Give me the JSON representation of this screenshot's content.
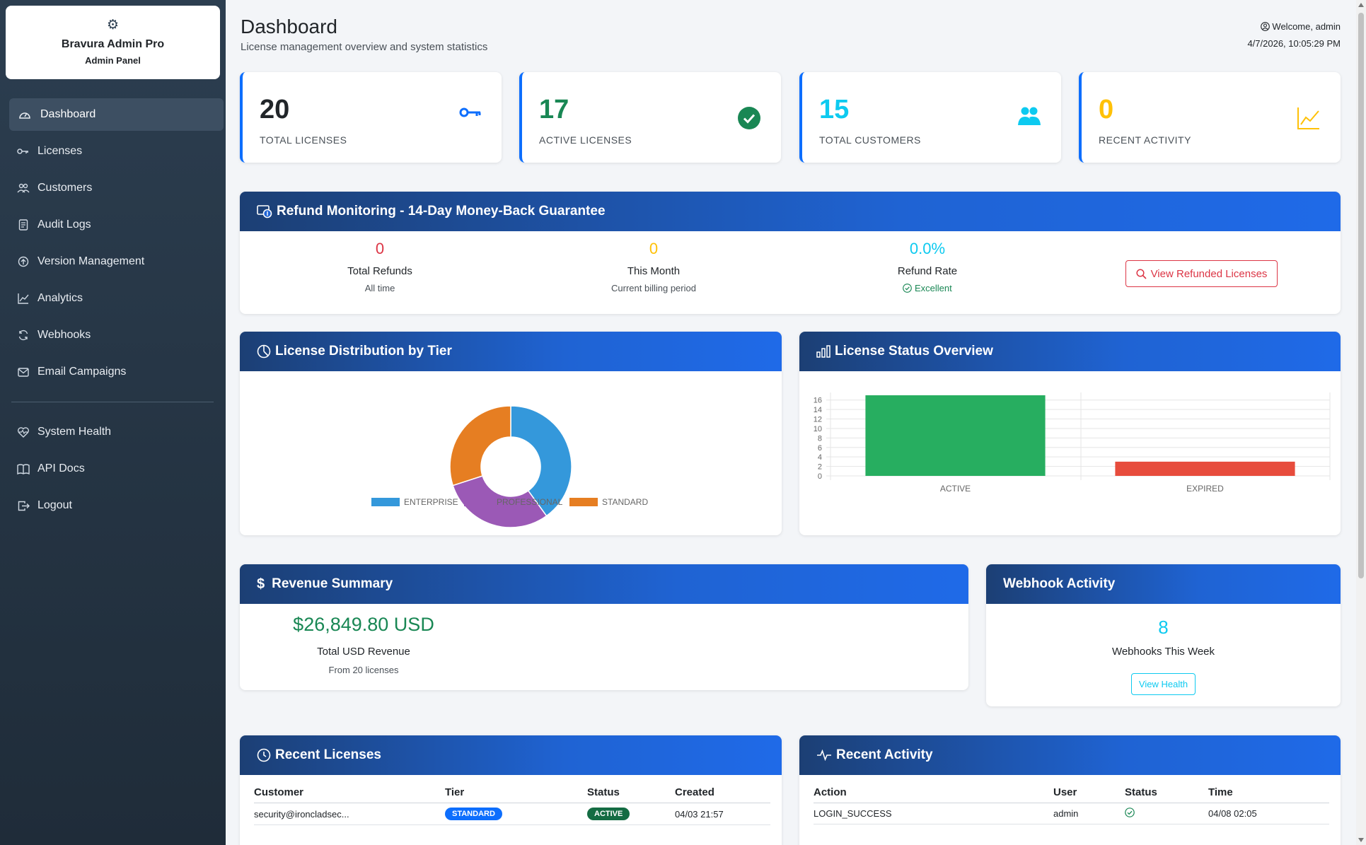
{
  "brand": {
    "name": "Bravura Admin Pro",
    "subtitle": "Admin Panel",
    "icon": "gear-icon"
  },
  "sidebar": {
    "items": [
      {
        "label": "Dashboard",
        "icon": "speedometer-icon",
        "active": true
      },
      {
        "label": "Licenses",
        "icon": "key-icon"
      },
      {
        "label": "Customers",
        "icon": "people-icon"
      },
      {
        "label": "Audit Logs",
        "icon": "journal-icon"
      },
      {
        "label": "Version Management",
        "icon": "upload-circle-icon"
      },
      {
        "label": "Analytics",
        "icon": "line-chart-icon"
      },
      {
        "label": "Webhooks",
        "icon": "refresh-icon"
      },
      {
        "label": "Email Campaigns",
        "icon": "envelope-icon"
      },
      {
        "label": "System Health",
        "icon": "heart-pulse-icon"
      },
      {
        "label": "API Docs",
        "icon": "book-icon"
      },
      {
        "label": "Logout",
        "icon": "logout-icon"
      }
    ]
  },
  "header": {
    "title": "Dashboard",
    "subtitle": "License management overview and system statistics",
    "welcome": "Welcome, admin",
    "datetime": "4/7/2026, 10:05:29 PM"
  },
  "stats": [
    {
      "value": "20",
      "label": "TOTAL LICENSES",
      "color": "#212529",
      "accent": "#0d6efd",
      "icon": "key-icon"
    },
    {
      "value": "17",
      "label": "ACTIVE LICENSES",
      "color": "#198754",
      "accent": "#0d6efd",
      "icon": "check-circle-icon"
    },
    {
      "value": "15",
      "label": "TOTAL CUSTOMERS",
      "color": "#0dcaf0",
      "accent": "#0d6efd",
      "icon": "people-icon"
    },
    {
      "value": "0",
      "label": "RECENT ACTIVITY",
      "color": "#ffc107",
      "accent": "#0d6efd",
      "icon": "graph-up-icon"
    }
  ],
  "refund": {
    "title": "Refund Monitoring - 14-Day Money-Back Guarantee",
    "total_value": "0",
    "total_label": "Total Refunds",
    "total_sub": "All time",
    "month_value": "0",
    "month_label": "This Month",
    "month_sub": "Current billing period",
    "rate_value": "0.0%",
    "rate_label": "Refund Rate",
    "rate_sub": "Excellent",
    "button": "View Refunded Licenses",
    "colors": {
      "total": "#dc3545",
      "month": "#ffc107",
      "rate": "#0dcaf0",
      "excellent": "#198754"
    }
  },
  "distribution": {
    "title": "License Distribution by Tier",
    "legend": [
      "ENTERPRISE",
      "PROFESSIONAL",
      "STANDARD"
    ]
  },
  "status_overview": {
    "title": "License Status Overview"
  },
  "chart_data": [
    {
      "type": "pie",
      "categories": [
        "ENTERPRISE",
        "PROFESSIONAL",
        "STANDARD"
      ],
      "values": [
        8,
        6,
        6
      ],
      "colors": [
        "#3498db",
        "#9b59b6",
        "#e67e22"
      ],
      "donut": true,
      "legend_position": "bottom"
    },
    {
      "type": "bar",
      "categories": [
        "ACTIVE",
        "EXPIRED"
      ],
      "values": [
        17,
        3
      ],
      "colors": [
        "#27ae60",
        "#e74c3c"
      ],
      "ylim": [
        0,
        17
      ],
      "yticks": [
        0,
        2,
        4,
        6,
        8,
        10,
        12,
        14,
        16
      ],
      "grid": true
    }
  ],
  "revenue": {
    "title": "Revenue Summary",
    "amount": "$26,849.80 USD",
    "label": "Total USD Revenue",
    "sub": "From 20 licenses"
  },
  "webhook": {
    "title": "Webhook Activity",
    "count": "8",
    "label": "Webhooks This Week",
    "button": "View Health"
  },
  "recent_licenses": {
    "title": "Recent Licenses",
    "columns": [
      "Customer",
      "Tier",
      "Status",
      "Created"
    ],
    "rows": [
      {
        "customer": "security@ironcladsec...",
        "tier": "STANDARD",
        "status": "ACTIVE",
        "created": "04/03 21:57"
      }
    ]
  },
  "recent_activity": {
    "title": "Recent Activity",
    "columns": [
      "Action",
      "User",
      "Status",
      "Time"
    ],
    "rows": [
      {
        "action": "LOGIN_SUCCESS",
        "user": "admin",
        "status": "success",
        "time": "04/08 02:05"
      }
    ]
  }
}
